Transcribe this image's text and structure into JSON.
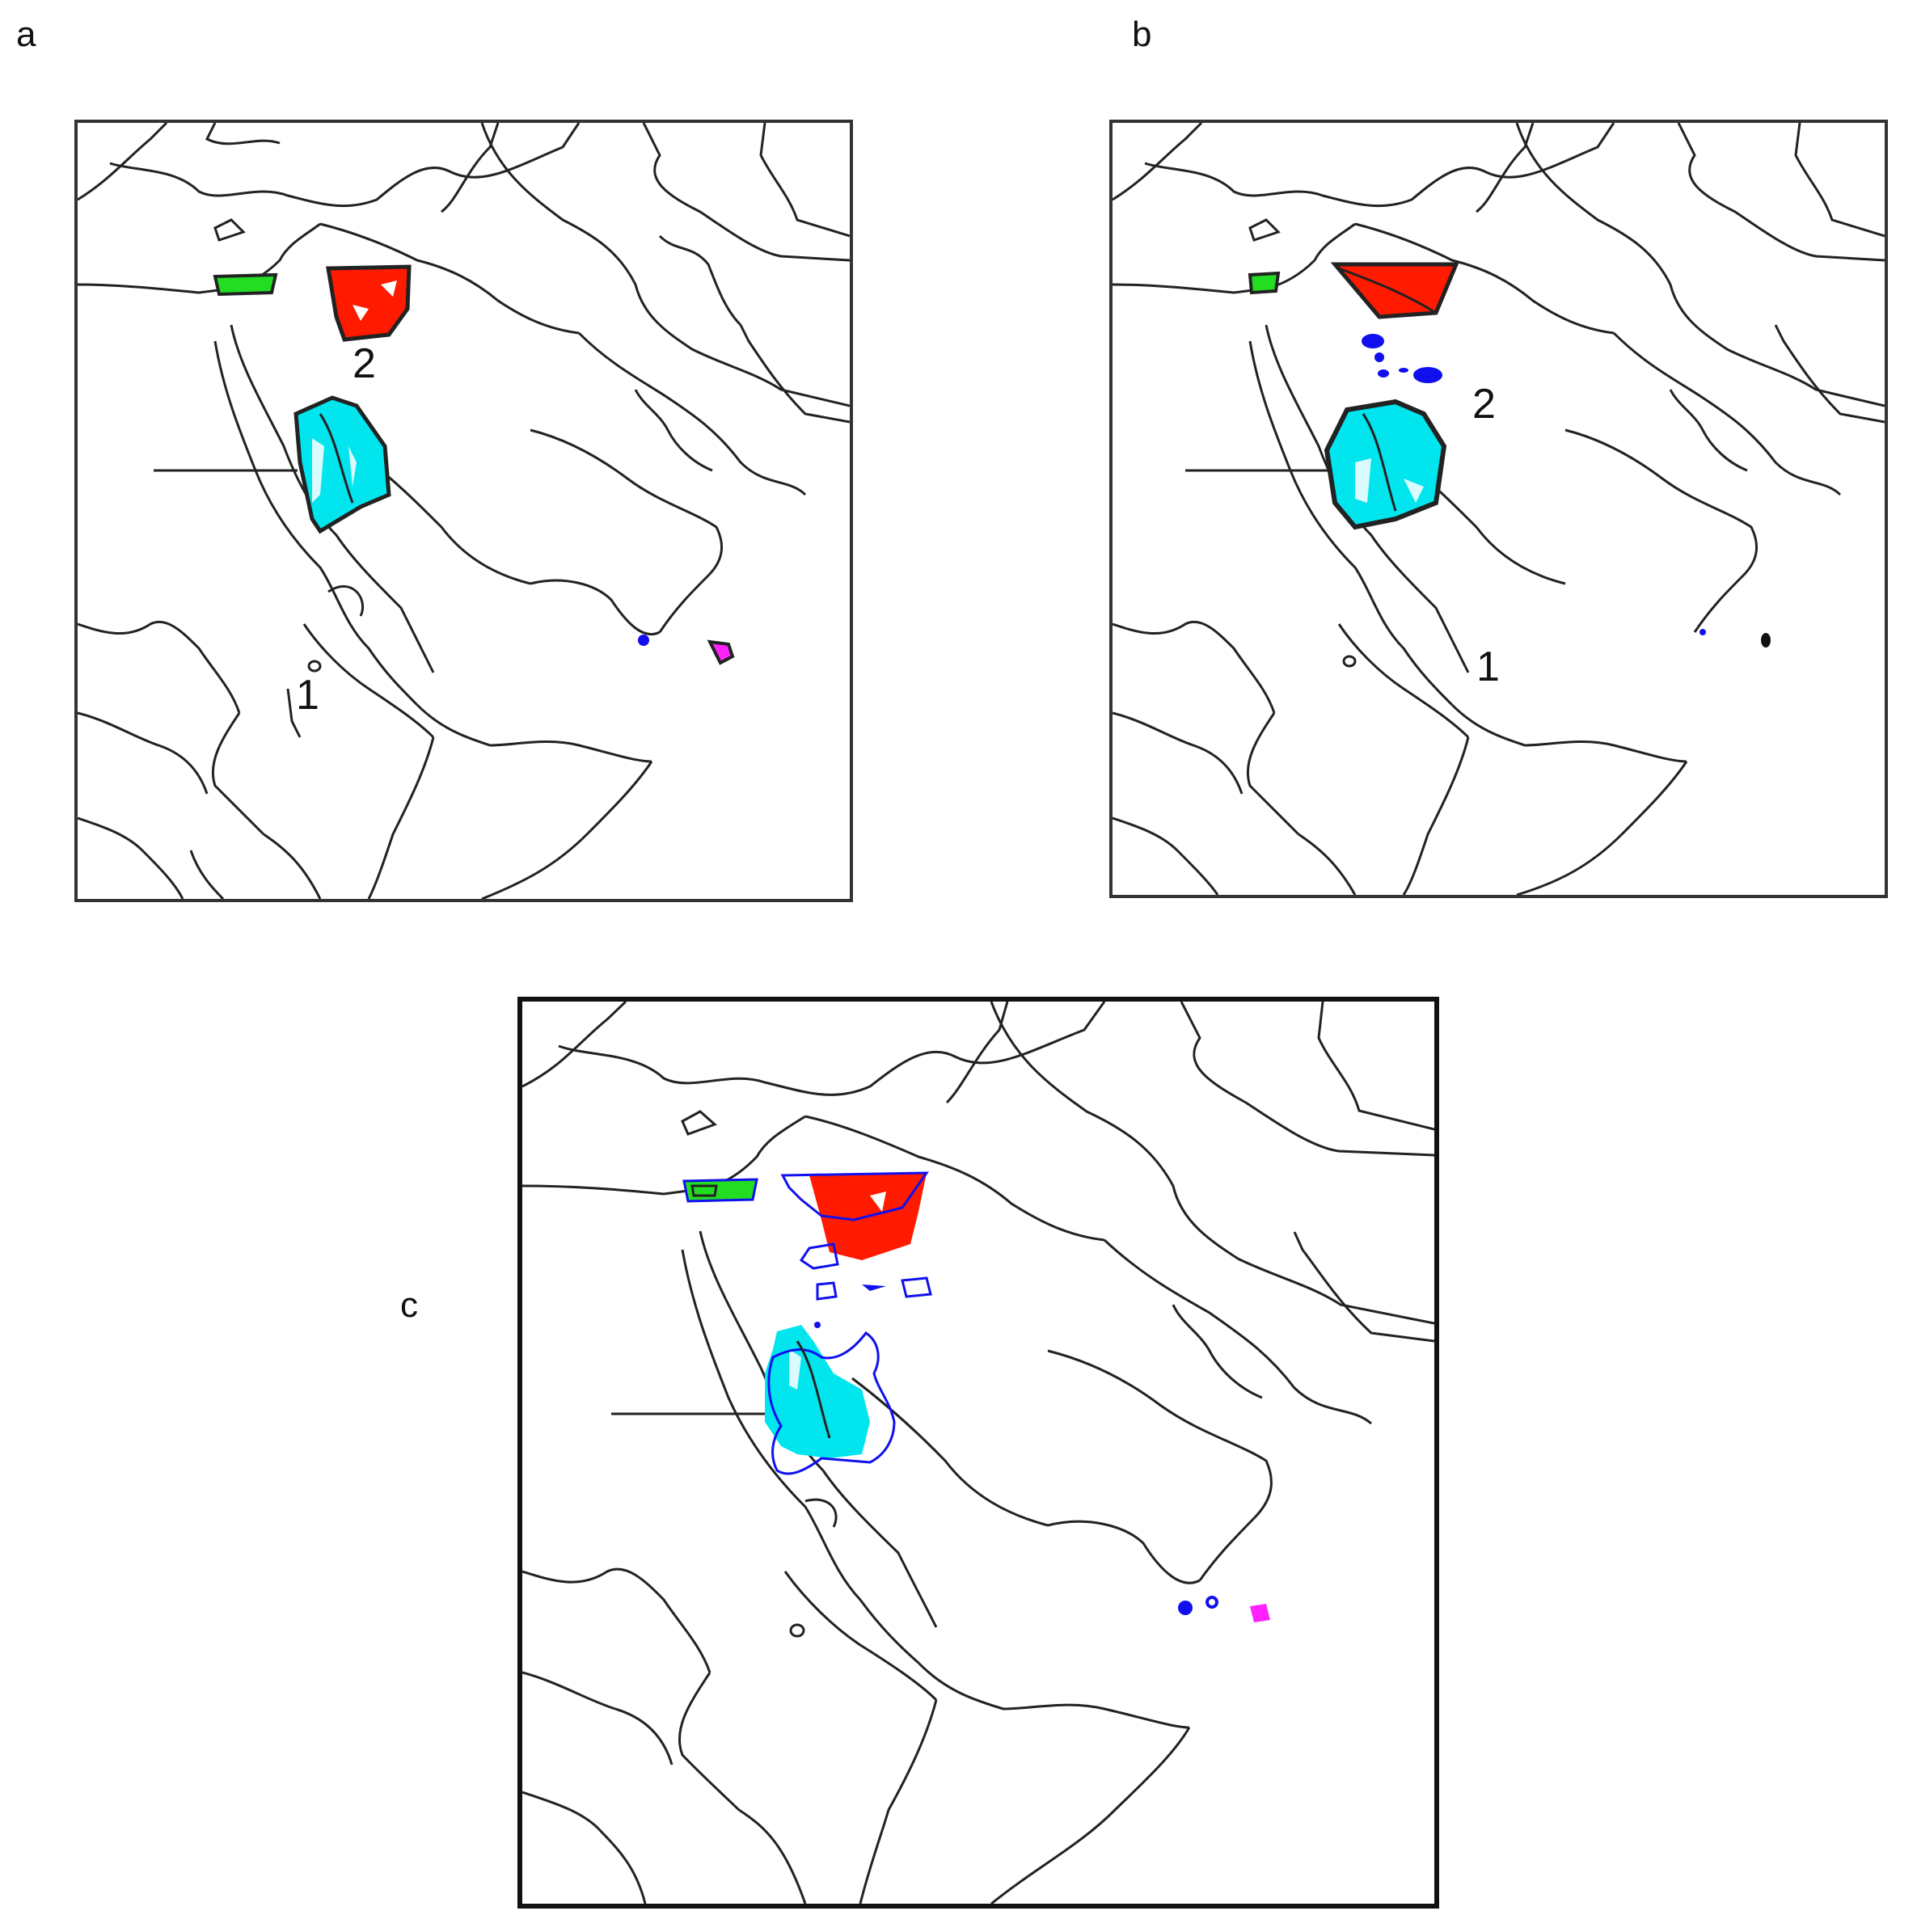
{
  "panels": [
    {
      "id": "a",
      "label": "a",
      "markers": [
        "1",
        "2"
      ]
    },
    {
      "id": "b",
      "label": "b",
      "markers": [
        "1",
        "2"
      ]
    },
    {
      "id": "c",
      "label": "c",
      "markers": []
    }
  ],
  "colors": {
    "cyan_region": "#00e5ee",
    "red_region": "#ff1a00",
    "green_region": "#22dd22",
    "blue_contour": "#1010ee",
    "magenta_region": "#ff22ff",
    "coastline": "#222222"
  }
}
